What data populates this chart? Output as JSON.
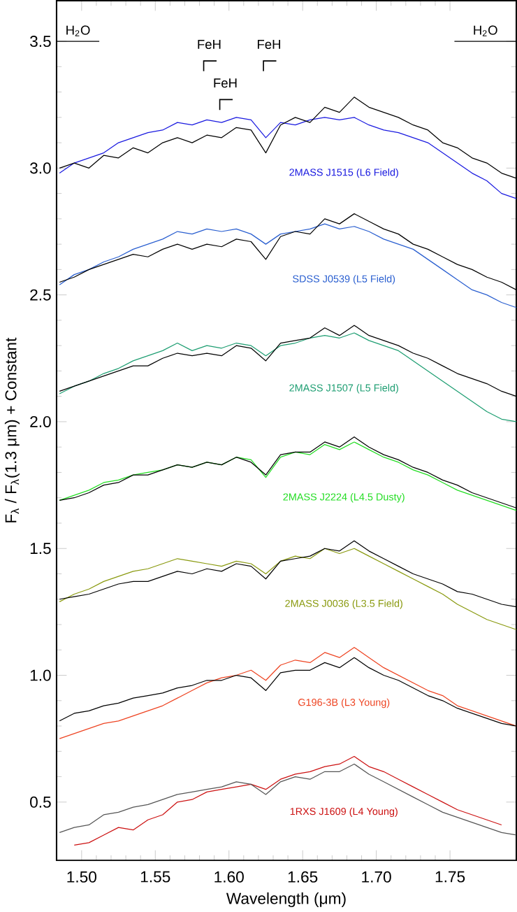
{
  "chart_data": {
    "type": "line",
    "xlabel": "Wavelength (μm)",
    "ylabel": "F$_{λ}$ / F$_{λ}$(1.3 μm) + Constant",
    "xlim": [
      1.483,
      1.795
    ],
    "ylim": [
      0.27,
      3.66
    ],
    "xticks": [
      {
        "value": 1.5,
        "label": "1.50"
      },
      {
        "value": 1.55,
        "label": "1.55"
      },
      {
        "value": 1.6,
        "label": "1.60"
      },
      {
        "value": 1.65,
        "label": "1.65"
      },
      {
        "value": 1.7,
        "label": "1.70"
      },
      {
        "value": 1.75,
        "label": "1.75"
      }
    ],
    "yticks": [
      {
        "value": 0.5,
        "label": "0.5"
      },
      {
        "value": 1.0,
        "label": "1.0"
      },
      {
        "value": 1.5,
        "label": "1.5"
      },
      {
        "value": 2.0,
        "label": "2.0"
      },
      {
        "value": 2.5,
        "label": "2.5"
      },
      {
        "value": 3.0,
        "label": "3.0"
      },
      {
        "value": 3.5,
        "label": "3.5"
      }
    ],
    "x": [
      1.485,
      1.495,
      1.505,
      1.515,
      1.525,
      1.535,
      1.545,
      1.555,
      1.565,
      1.575,
      1.585,
      1.595,
      1.605,
      1.615,
      1.625,
      1.635,
      1.645,
      1.655,
      1.665,
      1.675,
      1.685,
      1.695,
      1.705,
      1.715,
      1.725,
      1.735,
      1.745,
      1.755,
      1.765,
      1.775,
      1.785,
      1.795
    ],
    "annotations": [
      {
        "text": "H$_{2}$O",
        "x": 1.4975,
        "y": 3.5
      },
      "FeH",
      "FeH",
      "FeH",
      {
        "text": "H$_{2}$O",
        "x": 1.774,
        "y": 3.5
      }
    ],
    "series": [
      {
        "name": "2MASS J1515 (L6 Field)",
        "color": "#1a1ae0",
        "values": [
          2.98,
          3.02,
          3.04,
          3.06,
          3.1,
          3.12,
          3.14,
          3.15,
          3.18,
          3.17,
          3.19,
          3.18,
          3.2,
          3.19,
          3.12,
          3.18,
          3.17,
          3.19,
          3.2,
          3.19,
          3.2,
          3.17,
          3.15,
          3.14,
          3.12,
          3.1,
          3.06,
          3.02,
          2.98,
          2.95,
          2.9,
          2.88
        ]
      },
      {
        "color": "#000000",
        "values": [
          3.0,
          3.02,
          3.0,
          3.05,
          3.04,
          3.08,
          3.06,
          3.1,
          3.12,
          3.1,
          3.13,
          3.12,
          3.16,
          3.15,
          3.06,
          3.17,
          3.2,
          3.18,
          3.24,
          3.22,
          3.28,
          3.24,
          3.22,
          3.2,
          3.17,
          3.15,
          3.1,
          3.08,
          3.04,
          3.02,
          2.98,
          2.96
        ]
      },
      {
        "name": "SDSS J0539 (L5 Field)",
        "color": "#2a5fd0",
        "values": [
          2.54,
          2.58,
          2.6,
          2.63,
          2.65,
          2.68,
          2.7,
          2.72,
          2.75,
          2.74,
          2.76,
          2.75,
          2.76,
          2.74,
          2.7,
          2.74,
          2.75,
          2.76,
          2.78,
          2.76,
          2.77,
          2.75,
          2.72,
          2.7,
          2.68,
          2.64,
          2.6,
          2.56,
          2.52,
          2.5,
          2.47,
          2.45
        ]
      },
      {
        "color": "#000000",
        "values": [
          2.55,
          2.57,
          2.6,
          2.62,
          2.64,
          2.66,
          2.65,
          2.68,
          2.7,
          2.68,
          2.7,
          2.69,
          2.72,
          2.71,
          2.64,
          2.73,
          2.75,
          2.74,
          2.8,
          2.78,
          2.82,
          2.79,
          2.76,
          2.74,
          2.7,
          2.68,
          2.65,
          2.62,
          2.6,
          2.57,
          2.55,
          2.52
        ]
      },
      {
        "name": "2MASS J1507 (L5 Field)",
        "color": "#1e9e72",
        "values": [
          2.11,
          2.14,
          2.16,
          2.19,
          2.21,
          2.24,
          2.26,
          2.28,
          2.31,
          2.28,
          2.3,
          2.29,
          2.31,
          2.3,
          2.26,
          2.3,
          2.31,
          2.33,
          2.34,
          2.33,
          2.35,
          2.32,
          2.3,
          2.28,
          2.24,
          2.2,
          2.16,
          2.12,
          2.08,
          2.04,
          2.01,
          2.0
        ]
      },
      {
        "color": "#000000",
        "values": [
          2.12,
          2.14,
          2.16,
          2.18,
          2.2,
          2.22,
          2.22,
          2.25,
          2.27,
          2.26,
          2.27,
          2.26,
          2.3,
          2.29,
          2.24,
          2.31,
          2.32,
          2.33,
          2.37,
          2.34,
          2.38,
          2.34,
          2.32,
          2.3,
          2.27,
          2.25,
          2.22,
          2.19,
          2.17,
          2.15,
          2.12,
          2.1
        ]
      },
      {
        "name": "2MASS J2224 (L4.5 Dusty)",
        "color": "#22dd22",
        "values": [
          1.69,
          1.71,
          1.73,
          1.76,
          1.77,
          1.79,
          1.8,
          1.81,
          1.83,
          1.82,
          1.84,
          1.83,
          1.86,
          1.85,
          1.78,
          1.86,
          1.88,
          1.87,
          1.91,
          1.89,
          1.92,
          1.89,
          1.86,
          1.84,
          1.81,
          1.79,
          1.76,
          1.73,
          1.71,
          1.69,
          1.67,
          1.65
        ]
      },
      {
        "color": "#000000",
        "values": [
          1.69,
          1.7,
          1.72,
          1.75,
          1.76,
          1.79,
          1.79,
          1.81,
          1.83,
          1.82,
          1.84,
          1.83,
          1.86,
          1.84,
          1.79,
          1.87,
          1.88,
          1.88,
          1.92,
          1.9,
          1.94,
          1.9,
          1.87,
          1.85,
          1.82,
          1.8,
          1.77,
          1.75,
          1.72,
          1.7,
          1.68,
          1.66
        ]
      },
      {
        "name": "2MASS J0036 (L3.5 Field)",
        "color": "#8a9a10",
        "values": [
          1.29,
          1.32,
          1.34,
          1.37,
          1.39,
          1.41,
          1.42,
          1.44,
          1.46,
          1.45,
          1.44,
          1.43,
          1.45,
          1.44,
          1.4,
          1.45,
          1.47,
          1.46,
          1.5,
          1.48,
          1.5,
          1.47,
          1.44,
          1.41,
          1.38,
          1.35,
          1.32,
          1.28,
          1.25,
          1.22,
          1.2,
          1.18
        ]
      },
      {
        "color": "#000000",
        "values": [
          1.3,
          1.31,
          1.32,
          1.34,
          1.36,
          1.37,
          1.37,
          1.39,
          1.41,
          1.4,
          1.42,
          1.41,
          1.44,
          1.43,
          1.38,
          1.45,
          1.46,
          1.47,
          1.5,
          1.49,
          1.53,
          1.49,
          1.46,
          1.43,
          1.4,
          1.38,
          1.36,
          1.33,
          1.32,
          1.3,
          1.28,
          1.27
        ]
      },
      {
        "name": "G196-3B (L3 Young)",
        "color": "#ee4422",
        "values": [
          0.75,
          0.77,
          0.79,
          0.81,
          0.82,
          0.84,
          0.86,
          0.88,
          0.91,
          0.94,
          0.97,
          0.99,
          1.0,
          1.02,
          0.98,
          1.04,
          1.06,
          1.05,
          1.09,
          1.07,
          1.11,
          1.07,
          1.03,
          1.0,
          0.97,
          0.94,
          0.92,
          0.88,
          0.86,
          0.84,
          0.82,
          0.8
        ]
      },
      {
        "color": "#000000",
        "values": [
          0.82,
          0.85,
          0.86,
          0.88,
          0.89,
          0.91,
          0.92,
          0.93,
          0.95,
          0.96,
          0.98,
          0.98,
          1.0,
          0.99,
          0.94,
          1.01,
          1.02,
          1.02,
          1.05,
          1.03,
          1.07,
          1.03,
          1.0,
          0.98,
          0.95,
          0.92,
          0.9,
          0.87,
          0.85,
          0.83,
          0.81,
          0.8
        ]
      },
      {
        "name": "1RXS J1609 (L4 Young)",
        "color": "#cc1111",
        "values": [
          null,
          0.33,
          0.34,
          0.37,
          0.4,
          0.39,
          0.43,
          0.45,
          0.5,
          0.51,
          0.54,
          0.55,
          0.56,
          0.57,
          0.55,
          0.59,
          0.61,
          0.62,
          0.64,
          0.65,
          0.68,
          0.64,
          0.62,
          0.59,
          0.56,
          0.53,
          0.5,
          0.47,
          0.45,
          0.43,
          0.41,
          null
        ]
      },
      {
        "color": "#555555",
        "values": [
          0.38,
          0.4,
          0.41,
          0.45,
          0.46,
          0.48,
          0.49,
          0.51,
          0.53,
          0.54,
          0.55,
          0.56,
          0.58,
          0.57,
          0.53,
          0.58,
          0.6,
          0.59,
          0.62,
          0.62,
          0.65,
          0.61,
          0.58,
          0.55,
          0.52,
          0.49,
          0.46,
          0.44,
          0.42,
          0.4,
          0.38,
          0.37
        ]
      },
      {
        "type": "line",
        "color": "#000000",
        "x": [
          1.483,
          1.512
        ],
        "values": [
          3.5,
          3.5
        ]
      },
      {
        "type": "line",
        "color": "#000000",
        "x": [
          1.753,
          1.795
        ],
        "values": [
          3.5,
          3.5
        ]
      }
    ]
  }
}
